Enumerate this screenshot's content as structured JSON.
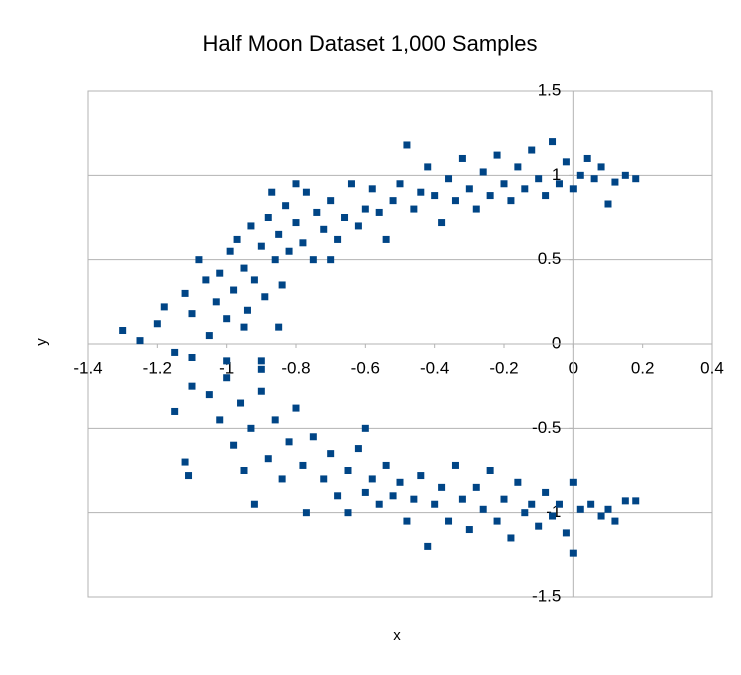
{
  "chart_data": {
    "type": "scatter",
    "title": "Half Moon Dataset 1,000 Samples",
    "x_label": "x",
    "y_label": "y",
    "xlim": [
      -1.4,
      0.4
    ],
    "ylim": [
      -1.5,
      1.5
    ],
    "xticks": [
      -1.4,
      -1.2,
      -1,
      -0.8,
      -0.6,
      -0.4,
      -0.2,
      0,
      0.2,
      0.4
    ],
    "yticks": [
      -1.5,
      -1,
      -0.5,
      0,
      0.5,
      1,
      1.5
    ],
    "grid": true,
    "color": "#004586",
    "x": [
      -1.3,
      -1.25,
      -1.2,
      -1.18,
      -1.15,
      -1.12,
      -1.1,
      -1.08,
      -1.06,
      -1.05,
      -1.03,
      -1.02,
      -1.0,
      -0.99,
      -0.98,
      -0.97,
      -0.95,
      -0.94,
      -0.93,
      -0.92,
      -0.9,
      -0.89,
      -0.88,
      -0.86,
      -0.85,
      -0.84,
      -0.83,
      -0.82,
      -0.8,
      -0.78,
      -0.77,
      -0.75,
      -0.74,
      -0.72,
      -0.7,
      -0.68,
      -0.66,
      -0.64,
      -0.62,
      -0.6,
      -0.58,
      -0.56,
      -0.54,
      -0.52,
      -0.5,
      -0.48,
      -0.46,
      -0.44,
      -0.42,
      -0.4,
      -0.38,
      -0.36,
      -0.34,
      -0.32,
      -0.3,
      -0.28,
      -0.26,
      -0.24,
      -0.22,
      -0.2,
      -0.18,
      -0.16,
      -0.14,
      -0.12,
      -0.1,
      -0.08,
      -0.06,
      -0.04,
      -0.02,
      0,
      0.02,
      0.04,
      0.06,
      0.08,
      0.1,
      0.12,
      0.15,
      0.18,
      -0.8,
      -0.87,
      -0.7,
      -0.95,
      -1.0,
      -1.1,
      -0.9,
      -0.85,
      -1.12,
      -1.11,
      -1.15,
      -1.1,
      -1.05,
      -1.02,
      -1.0,
      -0.98,
      -0.96,
      -0.95,
      -0.93,
      -0.92,
      -0.9,
      -0.88,
      -0.86,
      -0.84,
      -0.82,
      -0.8,
      -0.78,
      -0.77,
      -0.75,
      -0.72,
      -0.7,
      -0.68,
      -0.65,
      -0.62,
      -0.6,
      -0.58,
      -0.56,
      -0.54,
      -0.52,
      -0.5,
      -0.48,
      -0.46,
      -0.44,
      -0.42,
      -0.4,
      -0.38,
      -0.36,
      -0.34,
      -0.32,
      -0.3,
      -0.28,
      -0.26,
      -0.24,
      -0.22,
      -0.2,
      -0.18,
      -0.16,
      -0.14,
      -0.12,
      -0.1,
      -0.08,
      -0.06,
      -0.04,
      -0.02,
      0,
      0,
      0.02,
      0.05,
      0.08,
      0.1,
      0.12,
      0.15,
      0.18,
      -0.6,
      -0.65,
      -0.9
    ],
    "values": [
      0.08,
      0.02,
      0.12,
      0.22,
      -0.05,
      0.3,
      0.18,
      0.5,
      0.38,
      0.05,
      0.25,
      0.42,
      0.15,
      0.55,
      0.32,
      0.62,
      0.45,
      0.2,
      0.7,
      0.38,
      0.58,
      0.28,
      0.75,
      0.5,
      0.65,
      0.35,
      0.82,
      0.55,
      0.72,
      0.6,
      0.9,
      0.5,
      0.78,
      0.68,
      0.85,
      0.62,
      0.75,
      0.95,
      0.7,
      0.8,
      0.92,
      0.78,
      0.62,
      0.85,
      0.95,
      1.18,
      0.8,
      0.9,
      1.05,
      0.88,
      0.72,
      0.98,
      0.85,
      1.1,
      0.92,
      0.8,
      1.02,
      0.88,
      1.12,
      0.95,
      0.85,
      1.05,
      0.92,
      1.15,
      0.98,
      0.88,
      1.2,
      0.95,
      1.08,
      0.92,
      1.0,
      1.1,
      0.98,
      1.05,
      0.83,
      0.96,
      1.0,
      0.98,
      0.95,
      0.9,
      0.5,
      0.1,
      -0.1,
      -0.08,
      -0.1,
      0.1,
      -0.7,
      -0.78,
      -0.4,
      -0.25,
      -0.3,
      -0.45,
      -0.2,
      -0.6,
      -0.35,
      -0.75,
      -0.5,
      -0.95,
      -0.28,
      -0.68,
      -0.45,
      -0.8,
      -0.58,
      -0.38,
      -0.72,
      -1.0,
      -0.55,
      -0.8,
      -0.65,
      -0.9,
      -0.75,
      -0.62,
      -0.88,
      -0.8,
      -0.95,
      -0.72,
      -0.9,
      -0.82,
      -1.05,
      -0.92,
      -0.78,
      -1.2,
      -0.95,
      -0.85,
      -1.05,
      -0.72,
      -0.92,
      -1.1,
      -0.85,
      -0.98,
      -0.75,
      -1.05,
      -0.92,
      -1.15,
      -0.82,
      -1.0,
      -0.95,
      -1.08,
      -0.88,
      -1.02,
      -0.95,
      -1.12,
      -0.82,
      -1.24,
      -0.98,
      -0.95,
      -1.02,
      -0.98,
      -1.05,
      -0.93,
      -0.93,
      -0.5,
      -1.0,
      -0.15
    ]
  }
}
